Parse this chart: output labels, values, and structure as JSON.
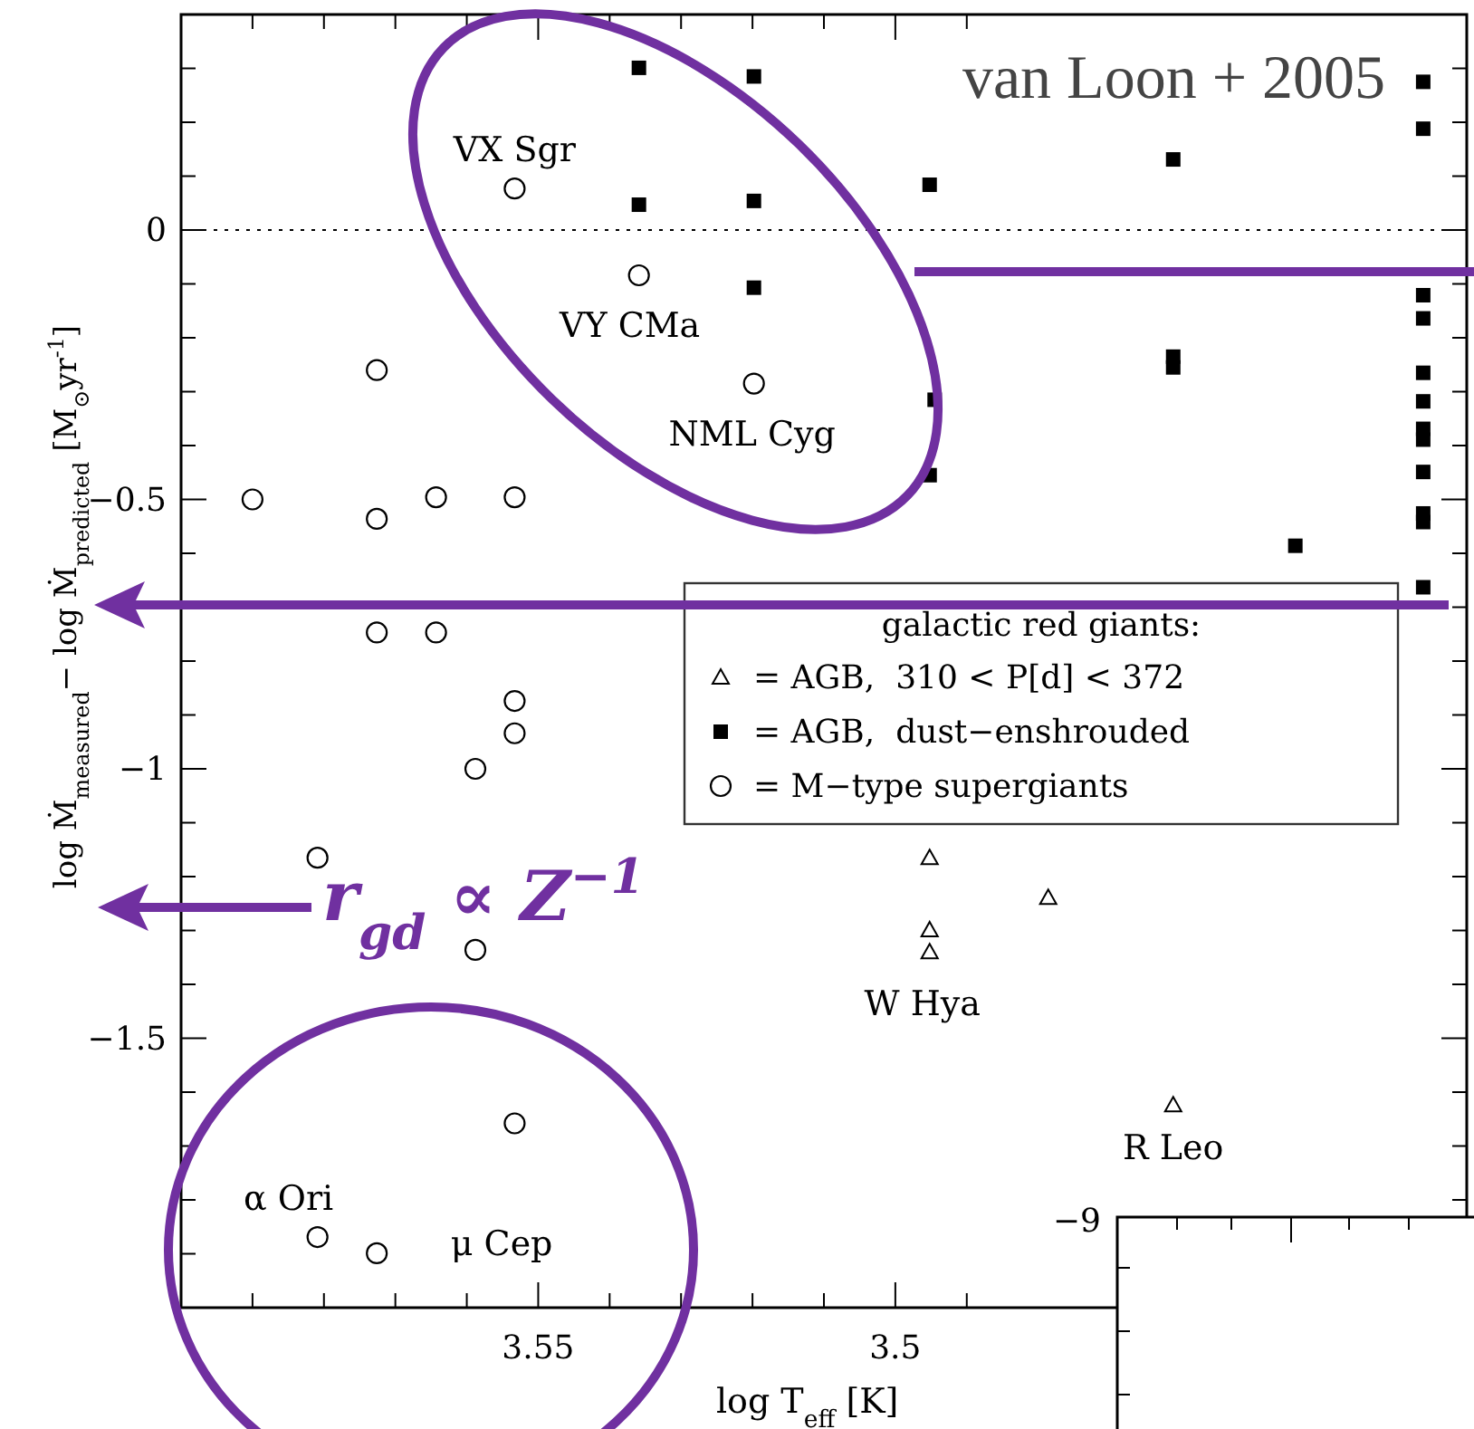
{
  "chart_data": {
    "type": "scatter",
    "xlabel": "log T$_{eff}$ [K]",
    "ylabel": "log Ṁ$_{measured}$− log Ṁ$_{predicted}$ [M$_{⊙}$yr$^{-1}$]",
    "legend_title": "galactic red giants:",
    "legend": "right",
    "xlim": [
      3.6,
      3.42
    ],
    "ylim": [
      -2.0,
      0.4
    ],
    "xticks": [
      {
        "value": 3.59,
        "label": null
      },
      {
        "value": 3.58,
        "label": null
      },
      {
        "value": 3.57,
        "label": null
      },
      {
        "value": 3.56,
        "label": null
      },
      3.55,
      {
        "value": 3.54,
        "label": null
      },
      {
        "value": 3.53,
        "label": null
      },
      {
        "value": 3.52,
        "label": null
      },
      {
        "value": 3.51,
        "label": null
      },
      3.5,
      {
        "value": 3.49,
        "label": null
      }
    ],
    "yticks": [
      {
        "value": 0.3,
        "label": null
      },
      {
        "value": 0.2,
        "label": null
      },
      {
        "value": 0.1,
        "label": null
      },
      0,
      {
        "value": -0.1,
        "label": null
      },
      {
        "value": -0.2,
        "label": null
      },
      {
        "value": -0.3,
        "label": null
      },
      {
        "value": -0.4,
        "label": null
      },
      -0.5,
      {
        "value": -0.6,
        "label": null
      },
      {
        "value": -0.7,
        "label": null
      },
      {
        "value": -0.8,
        "label": null
      },
      {
        "value": -0.9,
        "label": null
      },
      -1,
      {
        "value": -1.1,
        "label": null
      },
      {
        "value": -1.2,
        "label": null
      },
      {
        "value": -1.3,
        "label": null
      },
      {
        "value": -1.4,
        "label": null
      },
      -1.5,
      {
        "value": -1.6,
        "label": null
      },
      {
        "value": -1.7,
        "label": null
      },
      {
        "value": -1.8,
        "label": null
      },
      {
        "value": -1.9,
        "label": null
      }
    ],
    "ref_lines": [
      {
        "axis": "y",
        "value": 0,
        "line_style": "dotted",
        "color": "#000000"
      }
    ],
    "series": [
      {
        "name": "= AGB,  310 < P[d] < 372",
        "color": "#000000",
        "marker": "triangle",
        "x": [
          3.4952,
          3.4786,
          3.4952,
          3.4952,
          3.4611
        ],
        "values": [
          -1.165,
          -1.239,
          -1.299,
          -1.34,
          -1.624
        ]
      },
      {
        "name": "= AGB,  dust−enshrouded",
        "color": "#000000",
        "marker": "square",
        "x": [
          3.5359,
          3.5198,
          3.5359,
          3.5198,
          3.5198,
          3.4952,
          3.4945,
          3.4952,
          3.4611,
          3.4611,
          3.4611,
          3.444,
          3.4261,
          3.4261,
          3.4261,
          3.4261,
          3.4261,
          3.4261,
          3.4261,
          3.4261,
          3.4261,
          3.4261,
          3.4261,
          3.4261
        ],
        "values": [
          0.301,
          0.285,
          0.047,
          0.054,
          -0.107,
          0.084,
          -0.315,
          -0.455,
          0.131,
          -0.235,
          -0.255,
          -0.586,
          0.275,
          0.188,
          -0.121,
          -0.164,
          -0.265,
          -0.318,
          -0.369,
          -0.389,
          -0.449,
          -0.526,
          -0.542,
          -0.663
        ]
      },
      {
        "name": "= M−type supergiants",
        "color": "#000000",
        "marker": "circle",
        "x": [
          3.5533,
          3.59,
          3.5726,
          3.5726,
          3.5643,
          3.5533,
          3.5726,
          3.5643,
          3.5533,
          3.5533,
          3.5588,
          3.5809,
          3.5588,
          3.5533,
          3.5809,
          3.5726,
          3.5359,
          3.5198
        ],
        "values": [
          0.077,
          -0.5,
          -0.26,
          -0.536,
          -0.496,
          -0.496,
          -0.747,
          -0.747,
          -0.874,
          -0.934,
          -1.0,
          -1.165,
          -1.336,
          -1.658,
          -1.869,
          -1.899,
          -0.084,
          -0.285
        ]
      }
    ],
    "annotations": [
      {
        "text": "VX Sgr",
        "x": 3.5533,
        "y": 0.077
      },
      {
        "text": "VY CMa",
        "x": 3.5359,
        "y": -0.084
      },
      {
        "text": "NML Cyg",
        "x": 3.5198,
        "y": -0.285
      },
      {
        "text": "W Hya",
        "x": 3.4952,
        "y": -1.34
      },
      {
        "text": "R Leo",
        "x": 3.4611,
        "y": -1.624
      },
      {
        "text": "α Ori",
        "x": 3.5809,
        "y": -1.869
      },
      {
        "text": "μ Cep",
        "x": 3.5726,
        "y": -1.899
      },
      "van Loon + 2005",
      "r$_{gd}$ ∝ Z$^{−1}$",
      "−9"
    ]
  }
}
